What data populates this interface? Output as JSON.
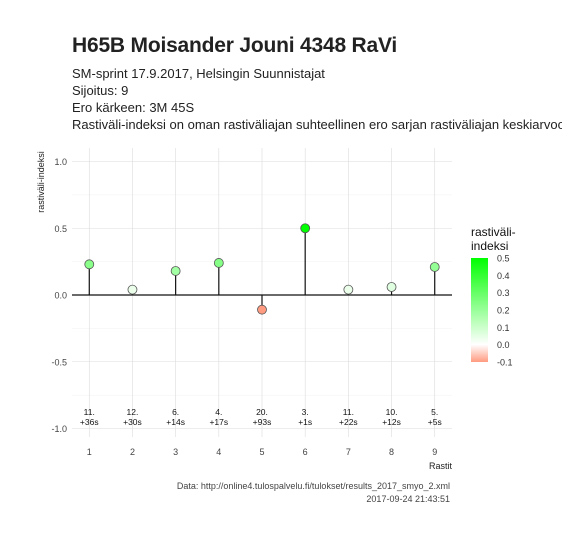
{
  "header": {
    "title": "H65B Moisander Jouni 4348 RaVi",
    "subtitle_lines": [
      "SM-sprint 17.9.2017, Helsingin Suunnistajat",
      "Sijoitus: 9",
      "Ero kärkeen: 3M 45S",
      "Rastiväli-indeksi on oman rastiväliajan suhteellinen ero sarjan rastiväliajan keskiarvoon"
    ]
  },
  "caption": {
    "source": "Data: http://online4.tulospalvelu.fi/tulokset/results_2017_smyo_2.xml",
    "timestamp": "2017-09-24 21:43:51"
  },
  "chart_data": {
    "type": "lollipop",
    "xlabel": "Rastit",
    "ylabel": "rastiväli-indeksi",
    "ylim": [
      -1.0,
      1.0
    ],
    "yticks": [
      "1.0",
      "0.5",
      "0.0",
      "-0.5",
      "-1.0"
    ],
    "grid": true,
    "x": [
      1,
      2,
      3,
      4,
      5,
      6,
      7,
      8,
      9
    ],
    "values": [
      0.23,
      0.04,
      0.18,
      0.24,
      -0.11,
      0.5,
      0.04,
      0.06,
      0.21
    ],
    "annotations": [
      [
        "11.",
        "+36s"
      ],
      [
        "12.",
        "+30s"
      ],
      [
        "6.",
        "+14s"
      ],
      [
        "4.",
        "+17s"
      ],
      [
        "20.",
        "+93s"
      ],
      [
        "3.",
        "+1s"
      ],
      [
        "11.",
        "+22s"
      ],
      [
        "10.",
        "+12s"
      ],
      [
        "5.",
        "+5s"
      ]
    ],
    "legend": {
      "title_lines": [
        "rastiväli-",
        "indeksi"
      ],
      "labels": [
        "0.5",
        "0.4",
        "0.3",
        "0.2",
        "0.1",
        "0.0",
        "-0.1"
      ],
      "placement": "right",
      "colors": {
        "high": "#00ff00",
        "mid": "#ffffff",
        "low": "#ff9b80"
      }
    }
  }
}
